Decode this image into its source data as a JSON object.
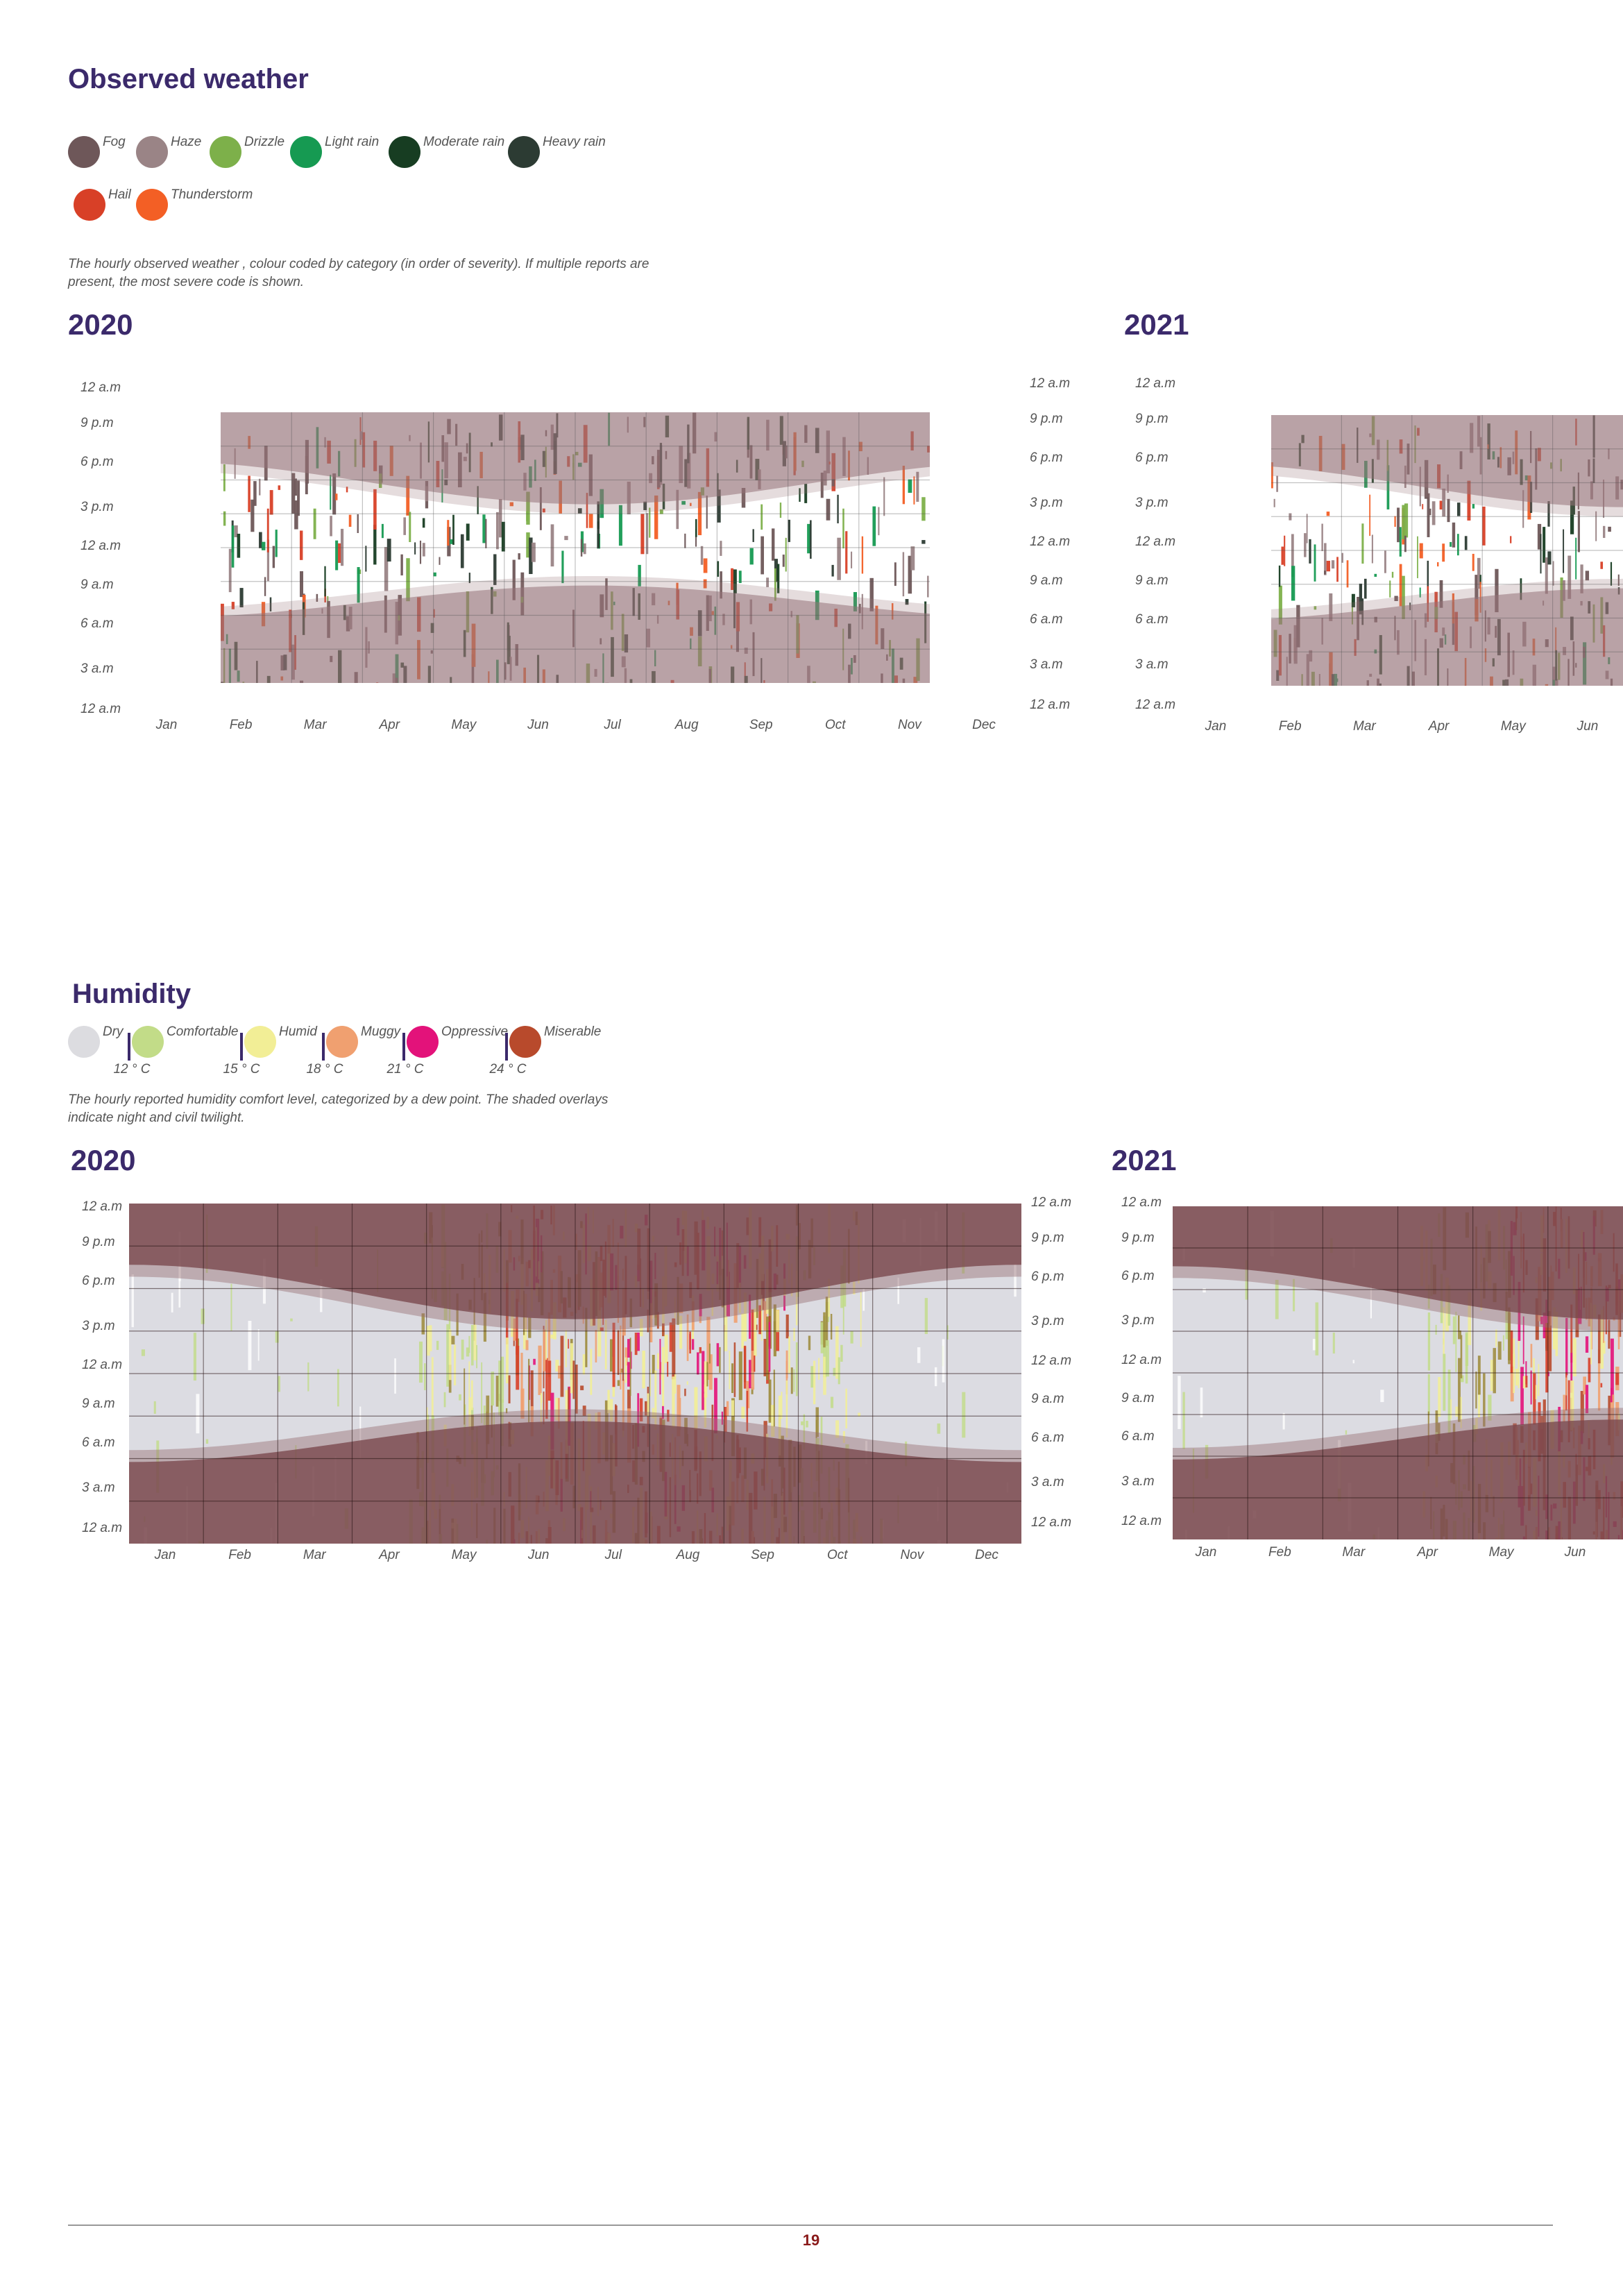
{
  "observed_weather": {
    "title": "Observed weather",
    "legend": [
      {
        "label": "Fog",
        "color": "#6e5759"
      },
      {
        "label": "Haze",
        "color": "#9a8486"
      },
      {
        "label": "Drizzle",
        "color": "#7db04a"
      },
      {
        "label": "Light rain",
        "color": "#169a52"
      },
      {
        "label": "Moderate rain",
        "color": "#173d22"
      },
      {
        "label": "Heavy rain",
        "color": "#2c3b33"
      },
      {
        "label": "Hail",
        "color": "#d84027"
      },
      {
        "label": "Thunderstorm",
        "color": "#f35f25"
      }
    ],
    "caption": "The hourly observed weather , colour coded by category (in order of severity). If multiple reports are present, the most severe code is shown.",
    "year_2020": "2020",
    "year_2021": "2021"
  },
  "humidity": {
    "title": "Humidity",
    "legend": [
      {
        "label": "Dry",
        "color": "#dcdce0"
      },
      {
        "label": "Comfortable",
        "color": "#c2dc88"
      },
      {
        "label": "Humid",
        "color": "#f2ee96"
      },
      {
        "label": "Muggy",
        "color": "#f0a070"
      },
      {
        "label": "Oppressive",
        "color": "#e3127a"
      },
      {
        "label": "Miserable",
        "color": "#b84a2c"
      }
    ],
    "thresholds": [
      "12 ° C",
      "15 ° C",
      "18 ° C",
      "21 ° C",
      "24 ° C"
    ],
    "caption": "The hourly reported humidity comfort level, categorized by a dew point. The shaded overlays indicate night and civil twilight.",
    "year_2020": "2020",
    "year_2021": "2021"
  },
  "y_ticks": [
    "12 a.m",
    "9 p.m",
    "6 p.m",
    "3 p.m",
    "12 a.m",
    "9 a.m",
    "6 a.m",
    "3 a.m",
    "12 a.m"
  ],
  "months_full": [
    "Jan",
    "Feb",
    "Mar",
    "Apr",
    "May",
    "Jun",
    "Jul",
    "Aug",
    "Sep",
    "Oct",
    "Nov",
    "Dec"
  ],
  "months_2021": [
    "Jan",
    "Feb",
    "Mar",
    "Apr",
    "May",
    "Jun"
  ],
  "page_number": "19",
  "chart_data": [
    {
      "type": "heatmap",
      "title": "2020",
      "categories": "Observed weather",
      "x_range": [
        "Jan",
        "Dec"
      ],
      "y_range": [
        "12 a.m",
        "12 a.m"
      ],
      "coverage_months": [
        "Feb",
        "Nov"
      ]
    },
    {
      "type": "heatmap",
      "title": "2021",
      "categories": "Observed weather",
      "x_range": [
        "Jan",
        "Jun"
      ],
      "y_range": [
        "12 a.m",
        "12 a.m"
      ],
      "coverage_months": [
        "Feb",
        "Jun"
      ]
    },
    {
      "type": "heatmap",
      "title": "2020",
      "categories": "Humidity",
      "x_range": [
        "Jan",
        "Dec"
      ],
      "y_range": [
        "12 a.m",
        "12 a.m"
      ]
    },
    {
      "type": "heatmap",
      "title": "2021",
      "categories": "Humidity",
      "x_range": [
        "Jan",
        "Jun"
      ],
      "y_range": [
        "12 a.m",
        "12 a.m"
      ]
    }
  ]
}
